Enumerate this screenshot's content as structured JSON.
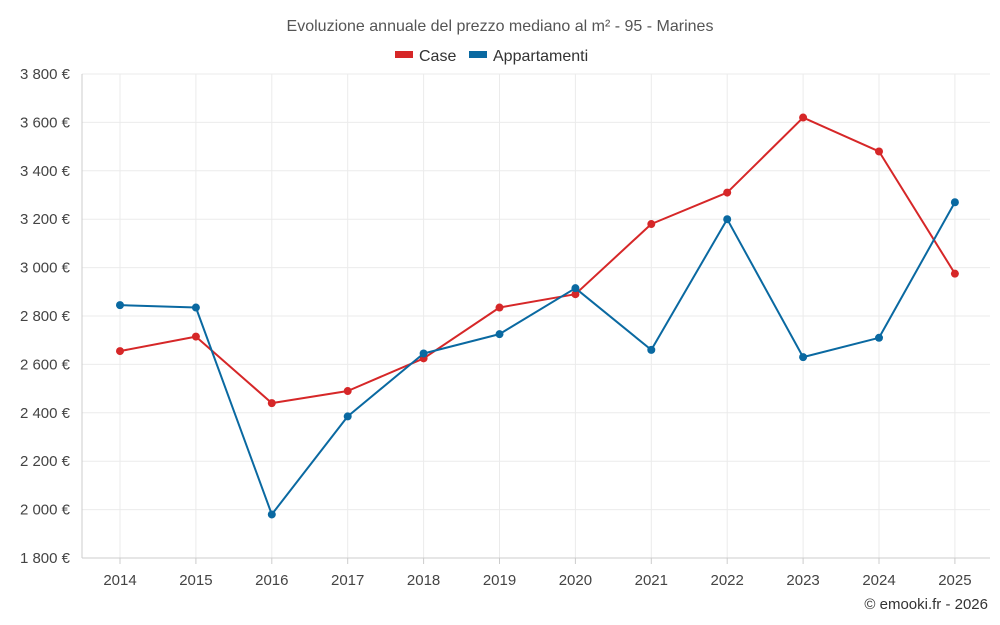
{
  "chart_data": {
    "type": "line",
    "title": "Evoluzione annuale del prezzo mediano al m² - 95 - Marines",
    "categories": [
      "2014",
      "2015",
      "2016",
      "2017",
      "2018",
      "2019",
      "2020",
      "2021",
      "2022",
      "2023",
      "2024",
      "2025"
    ],
    "series": [
      {
        "name": "Case",
        "color": "#d62728",
        "values": [
          2655,
          2715,
          2440,
          2490,
          2625,
          2835,
          2890,
          3180,
          3310,
          3620,
          3480,
          2975
        ]
      },
      {
        "name": "Appartamenti",
        "color": "#0a69a1",
        "values": [
          2845,
          2835,
          1980,
          2385,
          2645,
          2725,
          2915,
          2660,
          3200,
          2630,
          2710,
          3270
        ]
      }
    ],
    "ylim": [
      1800,
      3800
    ],
    "yticks": [
      1800,
      2000,
      2200,
      2400,
      2600,
      2800,
      3000,
      3200,
      3400,
      3600,
      3800
    ],
    "ytick_labels": [
      "1 800 €",
      "2 000 €",
      "2 200 €",
      "2 400 €",
      "2 600 €",
      "2 800 €",
      "3 000 €",
      "3 200 €",
      "3 400 €",
      "3 600 €",
      "3 800 €"
    ],
    "xlabel": "",
    "ylabel": "",
    "grid": true,
    "legend_position": "top-center"
  },
  "credit": "© emooki.fr - 2026"
}
